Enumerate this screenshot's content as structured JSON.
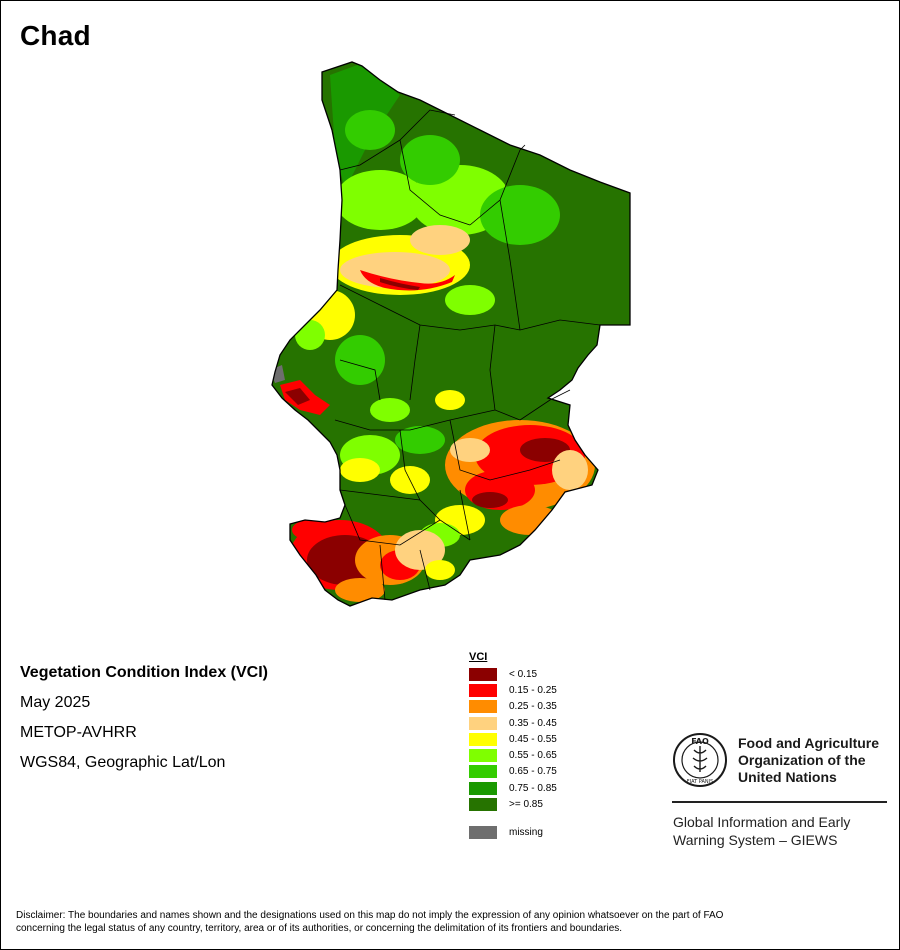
{
  "title": "Chad",
  "info": {
    "line1": "Vegetation Condition Index (VCI)",
    "line2": "May 2025",
    "line3": "METOP-AVHRR",
    "line4": "WGS84, Geographic Lat/Lon"
  },
  "legend": {
    "title": "VCI",
    "classes": [
      {
        "label": "< 0.15",
        "color": "#8b0000"
      },
      {
        "label": "0.15 - 0.25",
        "color": "#ff0000"
      },
      {
        "label": "0.25 - 0.35",
        "color": "#ff8c00"
      },
      {
        "label": "0.35 - 0.45",
        "color": "#ffd27f"
      },
      {
        "label": "0.45 - 0.55",
        "color": "#ffff00"
      },
      {
        "label": "0.55 - 0.65",
        "color": "#7fff00"
      },
      {
        "label": "0.65 - 0.75",
        "color": "#33cc00"
      },
      {
        "label": "0.75 - 0.85",
        "color": "#1a9900"
      },
      {
        "label": ">= 0.85",
        "color": "#267300"
      }
    ],
    "missing": {
      "label": "missing",
      "color": "#6e6e6e"
    }
  },
  "fao": {
    "name_line1": "Food and Agriculture",
    "name_line2": "Organization of the",
    "name_line3": "United Nations",
    "giews_line1": "Global Information and Early",
    "giews_line2": "Warning System – GIEWS",
    "logo_text": "FAO",
    "logo_motto": "FIAT PANIS"
  },
  "disclaimer": {
    "line1": "Disclaimer: The boundaries and names shown and the designations used on this map do not imply the expression of any opinion whatsoever on the part of FAO",
    "line2": "concerning the legal status of any country, territory, area or of its authorities, or concerning the delimitation of its frontiers and boundaries."
  }
}
